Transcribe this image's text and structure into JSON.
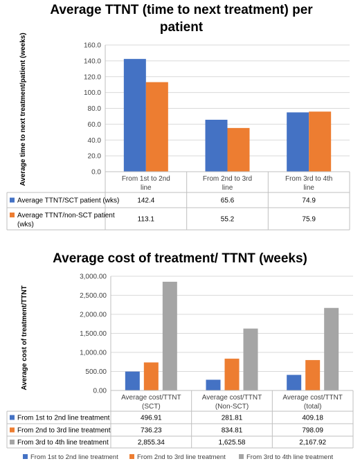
{
  "colors": {
    "blue": "#4472C4",
    "orange": "#ED7D31",
    "gray": "#A5A5A5"
  },
  "chart_data": [
    {
      "type": "bar",
      "title_line1": "Average TTNT (time to next treatment) per",
      "title_line2": "patient",
      "ylabel": "Average time to next treatment/patient (weeks)",
      "ylim": [
        0,
        160
      ],
      "yticks": [
        "0.0",
        "20.0",
        "40.0",
        "60.0",
        "80.0",
        "100.0",
        "120.0",
        "140.0",
        "160.0"
      ],
      "categories": [
        {
          "line1": "From 1st to 2nd",
          "line2": "line"
        },
        {
          "line1": "From 2nd to 3rd",
          "line2": "line"
        },
        {
          "line1": "From 3rd to 4th",
          "line2": "line"
        }
      ],
      "series": [
        {
          "name_line1": "Average TTNT/SCT patient (wks)",
          "name_line2": "",
          "color": "#4472C4",
          "values": [
            142.4,
            65.6,
            74.9
          ],
          "labels": [
            "142.4",
            "65.6",
            "74.9"
          ]
        },
        {
          "name_line1": "Average TTNT/non-SCT patient",
          "name_line2": "(wks)",
          "color": "#ED7D31",
          "values": [
            113.1,
            55.2,
            75.9
          ],
          "labels": [
            "113.1",
            "55.2",
            "75.9"
          ]
        }
      ]
    },
    {
      "type": "bar",
      "title": "Average cost of treatment/ TTNT (weeks)",
      "ylabel": "Average cost of treatment/TTNT",
      "ylim": [
        0,
        3000
      ],
      "yticks": [
        "0.00",
        "500.00",
        "1,000.00",
        "1,500.00",
        "2,000.00",
        "2,500.00",
        "3,000.00"
      ],
      "categories": [
        {
          "line1": "Average cost/TTNT",
          "line2": "(SCT)"
        },
        {
          "line1": "Average cost/TTNT",
          "line2": "(Non-SCT)"
        },
        {
          "line1": "Average cost/TTNT",
          "line2": "(total)"
        }
      ],
      "series": [
        {
          "name": "From 1st to 2nd line treatment",
          "color": "#4472C4",
          "values": [
            496.91,
            281.81,
            409.18
          ],
          "labels": [
            "496.91",
            "281.81",
            "409.18"
          ]
        },
        {
          "name": "From 2nd to 3rd line treatment",
          "color": "#ED7D31",
          "values": [
            736.23,
            834.81,
            798.09
          ],
          "labels": [
            "736.23",
            "834.81",
            "798.09"
          ]
        },
        {
          "name": "From 3rd to 4th line treatment",
          "color": "#A5A5A5",
          "values": [
            2855.34,
            1625.58,
            2167.92
          ],
          "labels": [
            "2,855.34",
            "1,625.58",
            "2,167.92"
          ]
        }
      ],
      "legend": "bottom"
    }
  ]
}
